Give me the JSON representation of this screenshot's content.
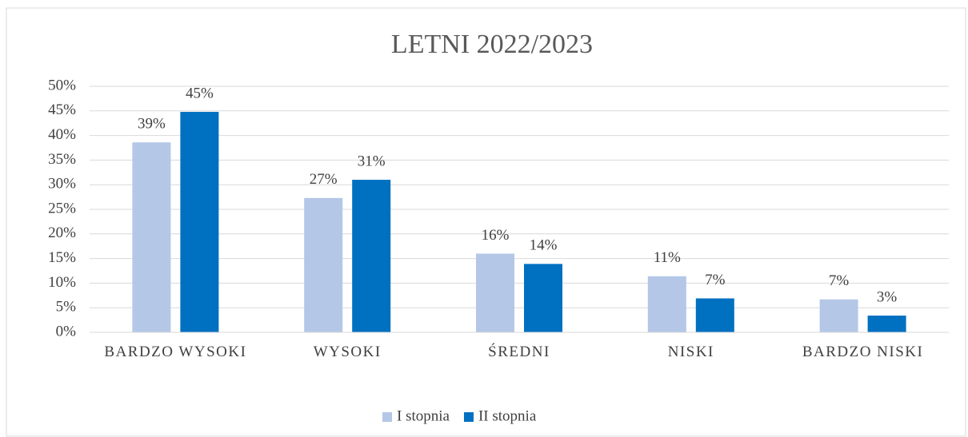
{
  "chart_data": {
    "type": "bar",
    "title": "LETNI 2022/2023",
    "categories": [
      "BARDZO WYSOKI",
      "WYSOKI",
      "ŚREDNI",
      "NISKI",
      "BARDZO NISKI"
    ],
    "series": [
      {
        "name": "I stopnia",
        "color": "#b4c7e7",
        "values": [
          38.6,
          27.3,
          16,
          11.4,
          6.7
        ],
        "value_labels": [
          "39%",
          "27%",
          "16%",
          "11%",
          "7%"
        ]
      },
      {
        "name": "II stopnia",
        "color": "#0070c0",
        "values": [
          44.8,
          31,
          13.9,
          6.9,
          3.4
        ],
        "value_labels": [
          "45%",
          "31%",
          "14%",
          "7%",
          "3%"
        ]
      }
    ],
    "ylim": [
      0,
      50
    ],
    "yticks": [
      {
        "value": 0,
        "label": "0%"
      },
      {
        "value": 5,
        "label": "5%"
      },
      {
        "value": 10,
        "label": "10%"
      },
      {
        "value": 15,
        "label": "15%"
      },
      {
        "value": 20,
        "label": "20%"
      },
      {
        "value": 25,
        "label": "25%"
      },
      {
        "value": 30,
        "label": "30%"
      },
      {
        "value": 35,
        "label": "35%"
      },
      {
        "value": 40,
        "label": "40%"
      },
      {
        "value": 45,
        "label": "45%"
      },
      {
        "value": 50,
        "label": "50%"
      }
    ],
    "grid": true,
    "legend": "bottom"
  }
}
